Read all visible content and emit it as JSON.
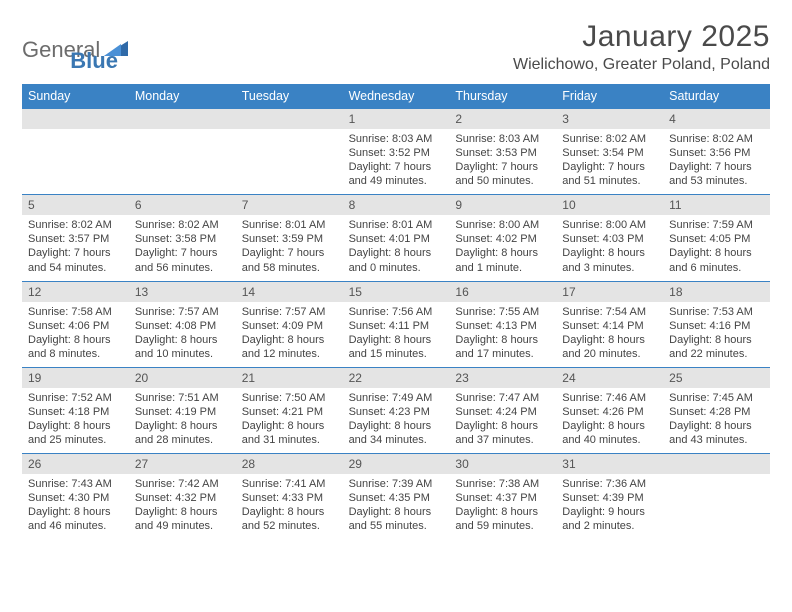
{
  "brand": {
    "text1": "General",
    "text2": "Blue"
  },
  "title": "January 2025",
  "location": "Wielichowo, Greater Poland, Poland",
  "colors": {
    "header_bg": "#3a82c4",
    "header_text": "#ffffff",
    "daynum_bg": "#e4e4e4",
    "rule": "#3a82c4",
    "text": "#444444",
    "logo_gray": "#6c6c6c",
    "logo_blue": "#3a77b2"
  },
  "dow": [
    "Sunday",
    "Monday",
    "Tuesday",
    "Wednesday",
    "Thursday",
    "Friday",
    "Saturday"
  ],
  "weeks": [
    [
      null,
      null,
      null,
      {
        "n": "1",
        "sr": "8:03 AM",
        "ss": "3:52 PM",
        "dl": "7 hours and 49 minutes."
      },
      {
        "n": "2",
        "sr": "8:03 AM",
        "ss": "3:53 PM",
        "dl": "7 hours and 50 minutes."
      },
      {
        "n": "3",
        "sr": "8:02 AM",
        "ss": "3:54 PM",
        "dl": "7 hours and 51 minutes."
      },
      {
        "n": "4",
        "sr": "8:02 AM",
        "ss": "3:56 PM",
        "dl": "7 hours and 53 minutes."
      }
    ],
    [
      {
        "n": "5",
        "sr": "8:02 AM",
        "ss": "3:57 PM",
        "dl": "7 hours and 54 minutes."
      },
      {
        "n": "6",
        "sr": "8:02 AM",
        "ss": "3:58 PM",
        "dl": "7 hours and 56 minutes."
      },
      {
        "n": "7",
        "sr": "8:01 AM",
        "ss": "3:59 PM",
        "dl": "7 hours and 58 minutes."
      },
      {
        "n": "8",
        "sr": "8:01 AM",
        "ss": "4:01 PM",
        "dl": "8 hours and 0 minutes."
      },
      {
        "n": "9",
        "sr": "8:00 AM",
        "ss": "4:02 PM",
        "dl": "8 hours and 1 minute."
      },
      {
        "n": "10",
        "sr": "8:00 AM",
        "ss": "4:03 PM",
        "dl": "8 hours and 3 minutes."
      },
      {
        "n": "11",
        "sr": "7:59 AM",
        "ss": "4:05 PM",
        "dl": "8 hours and 6 minutes."
      }
    ],
    [
      {
        "n": "12",
        "sr": "7:58 AM",
        "ss": "4:06 PM",
        "dl": "8 hours and 8 minutes."
      },
      {
        "n": "13",
        "sr": "7:57 AM",
        "ss": "4:08 PM",
        "dl": "8 hours and 10 minutes."
      },
      {
        "n": "14",
        "sr": "7:57 AM",
        "ss": "4:09 PM",
        "dl": "8 hours and 12 minutes."
      },
      {
        "n": "15",
        "sr": "7:56 AM",
        "ss": "4:11 PM",
        "dl": "8 hours and 15 minutes."
      },
      {
        "n": "16",
        "sr": "7:55 AM",
        "ss": "4:13 PM",
        "dl": "8 hours and 17 minutes."
      },
      {
        "n": "17",
        "sr": "7:54 AM",
        "ss": "4:14 PM",
        "dl": "8 hours and 20 minutes."
      },
      {
        "n": "18",
        "sr": "7:53 AM",
        "ss": "4:16 PM",
        "dl": "8 hours and 22 minutes."
      }
    ],
    [
      {
        "n": "19",
        "sr": "7:52 AM",
        "ss": "4:18 PM",
        "dl": "8 hours and 25 minutes."
      },
      {
        "n": "20",
        "sr": "7:51 AM",
        "ss": "4:19 PM",
        "dl": "8 hours and 28 minutes."
      },
      {
        "n": "21",
        "sr": "7:50 AM",
        "ss": "4:21 PM",
        "dl": "8 hours and 31 minutes."
      },
      {
        "n": "22",
        "sr": "7:49 AM",
        "ss": "4:23 PM",
        "dl": "8 hours and 34 minutes."
      },
      {
        "n": "23",
        "sr": "7:47 AM",
        "ss": "4:24 PM",
        "dl": "8 hours and 37 minutes."
      },
      {
        "n": "24",
        "sr": "7:46 AM",
        "ss": "4:26 PM",
        "dl": "8 hours and 40 minutes."
      },
      {
        "n": "25",
        "sr": "7:45 AM",
        "ss": "4:28 PM",
        "dl": "8 hours and 43 minutes."
      }
    ],
    [
      {
        "n": "26",
        "sr": "7:43 AM",
        "ss": "4:30 PM",
        "dl": "8 hours and 46 minutes."
      },
      {
        "n": "27",
        "sr": "7:42 AM",
        "ss": "4:32 PM",
        "dl": "8 hours and 49 minutes."
      },
      {
        "n": "28",
        "sr": "7:41 AM",
        "ss": "4:33 PM",
        "dl": "8 hours and 52 minutes."
      },
      {
        "n": "29",
        "sr": "7:39 AM",
        "ss": "4:35 PM",
        "dl": "8 hours and 55 minutes."
      },
      {
        "n": "30",
        "sr": "7:38 AM",
        "ss": "4:37 PM",
        "dl": "8 hours and 59 minutes."
      },
      {
        "n": "31",
        "sr": "7:36 AM",
        "ss": "4:39 PM",
        "dl": "9 hours and 2 minutes."
      },
      null
    ]
  ],
  "labels": {
    "sunrise": "Sunrise:",
    "sunset": "Sunset:",
    "daylight": "Daylight:"
  }
}
